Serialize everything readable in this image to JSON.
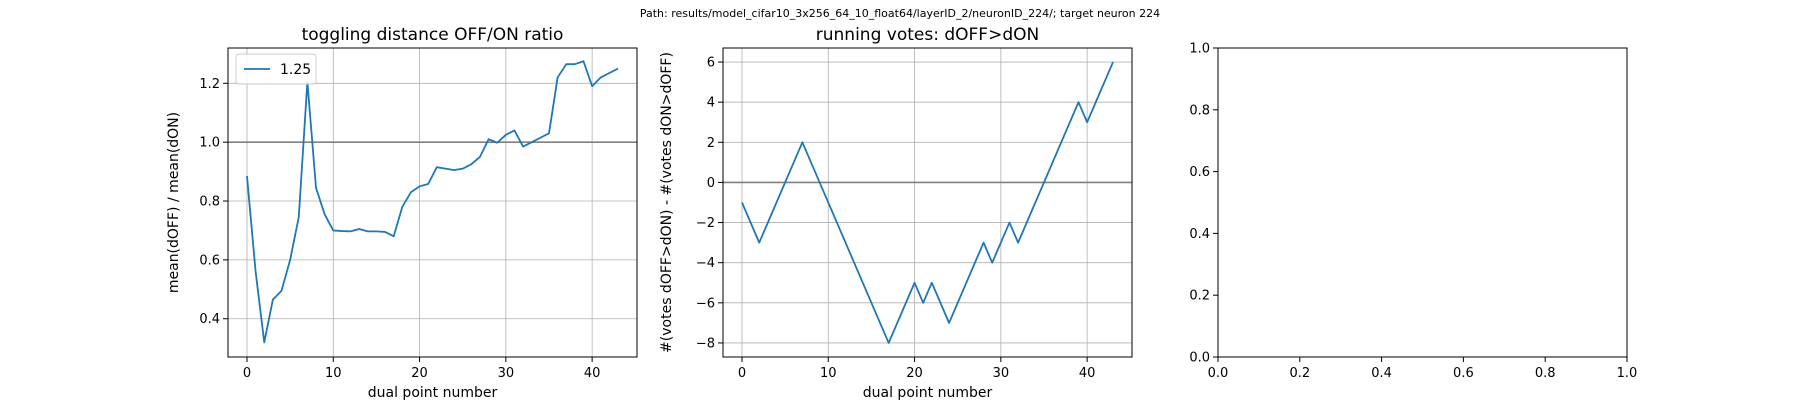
{
  "figure": {
    "suptitle": "Path: results/model_cifar10_3x256_64_10_float64/layerID_2/neuronID_224/; target neuron 224"
  },
  "chart_data": [
    {
      "type": "line",
      "title": "toggling distance OFF/ON ratio",
      "xlabel": "dual point number",
      "ylabel": "mean(dOFF) / mean(dON)",
      "xlim": [
        -2.2,
        45.2
      ],
      "ylim": [
        0.27,
        1.32
      ],
      "xticks": [
        0,
        10,
        20,
        30,
        40
      ],
      "yticks": [
        0.4,
        0.6,
        0.8,
        1.0,
        1.2
      ],
      "grid": true,
      "legend": {
        "position": "top-left",
        "entries": [
          "1.25"
        ]
      },
      "reference_line": {
        "y": 1.0,
        "color": "#808080"
      },
      "series": [
        {
          "name": "1.25",
          "color": "#1f77b4",
          "x": [
            0,
            1,
            2,
            3,
            4,
            5,
            6,
            7,
            8,
            9,
            10,
            11,
            12,
            13,
            14,
            15,
            16,
            17,
            18,
            19,
            20,
            21,
            22,
            23,
            24,
            25,
            26,
            27,
            28,
            29,
            30,
            31,
            32,
            33,
            34,
            35,
            36,
            37,
            38,
            39,
            40,
            41,
            42,
            43
          ],
          "y": [
            0.885,
            0.56,
            0.32,
            0.465,
            0.495,
            0.6,
            0.745,
            1.205,
            0.845,
            0.755,
            0.7,
            0.698,
            0.697,
            0.705,
            0.697,
            0.697,
            0.695,
            0.68,
            0.78,
            0.83,
            0.85,
            0.858,
            0.915,
            0.91,
            0.905,
            0.91,
            0.925,
            0.95,
            1.01,
            0.998,
            1.025,
            1.04,
            0.985,
            1.0,
            1.015,
            1.03,
            1.22,
            1.265,
            1.265,
            1.275,
            1.19,
            1.22,
            1.235,
            1.25
          ]
        }
      ]
    },
    {
      "type": "line",
      "title": "running votes: dOFF>dON",
      "xlabel": "dual point number",
      "ylabel": "#(votes dOFF>dON) - #(votes dON>dOFF)",
      "xlim": [
        -2.2,
        45.2
      ],
      "ylim": [
        -8.7,
        6.7
      ],
      "xticks": [
        0,
        10,
        20,
        30,
        40
      ],
      "yticks": [
        -8,
        -6,
        -4,
        -2,
        0,
        2,
        4,
        6
      ],
      "grid": true,
      "reference_line": {
        "y": 0,
        "color": "#808080"
      },
      "series": [
        {
          "color": "#1f77b4",
          "x": [
            0,
            2,
            7,
            17,
            20,
            21,
            22,
            24,
            28,
            29,
            31,
            32,
            39,
            40,
            43
          ],
          "y": [
            -1,
            -3,
            2,
            -8,
            -5,
            -6,
            -5,
            -7,
            -3,
            -4,
            -2,
            -3,
            4,
            3,
            6
          ]
        }
      ]
    },
    {
      "type": "line",
      "title": "",
      "xlabel": "",
      "ylabel": "",
      "xlim": [
        0,
        1
      ],
      "ylim": [
        0,
        1
      ],
      "xticks": [
        0.0,
        0.2,
        0.4,
        0.6,
        0.8,
        1.0
      ],
      "yticks": [
        0.0,
        0.2,
        0.4,
        0.6,
        0.8,
        1.0
      ],
      "grid": false,
      "series": []
    }
  ]
}
